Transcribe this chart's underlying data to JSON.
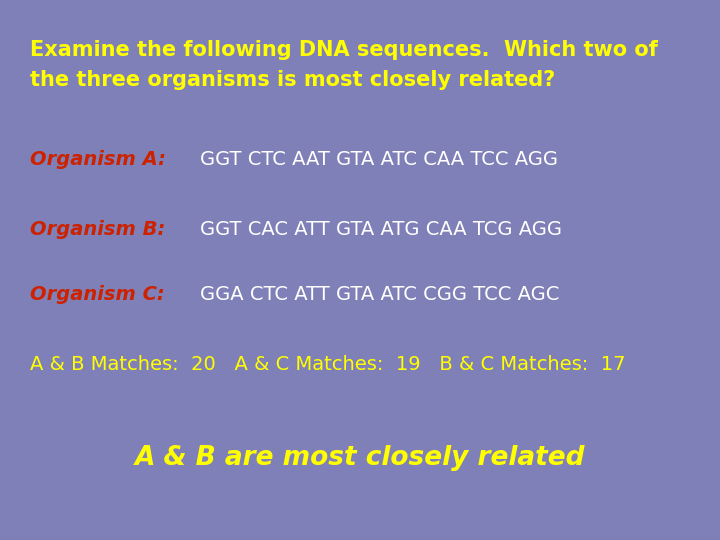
{
  "background_color": "#8080b8",
  "title_line1": "Examine the following DNA sequences.  Which two of",
  "title_line2": "the three organisms is most closely related?",
  "title_color": "#ffff00",
  "title_fontsize": 15,
  "title_bold": true,
  "org_label_color": "#cc2200",
  "org_seq_color": "#ffffff",
  "org_fontsize": 14,
  "organisms": [
    {
      "label": "Organism A",
      "sequence": "GGT CTC AAT GTA ATC CAA TCC AGG"
    },
    {
      "label": "Organism B",
      "sequence": "GGT CAC ATT GTA ATG CAA TCG AGG"
    },
    {
      "label": "Organism C",
      "sequence": "GGA CTC ATT GTA ATC CGG TCC AGC"
    }
  ],
  "matches_text": "A & B Matches:  20   A & C Matches:  19   B & C Matches:  17",
  "matches_color": "#ffff00",
  "matches_fontsize": 14,
  "conclusion_text": "A & B are most closely related",
  "conclusion_color": "#ffff00",
  "conclusion_fontsize": 19,
  "conclusion_bold": true,
  "fig_width": 7.2,
  "fig_height": 5.4,
  "dpi": 100
}
